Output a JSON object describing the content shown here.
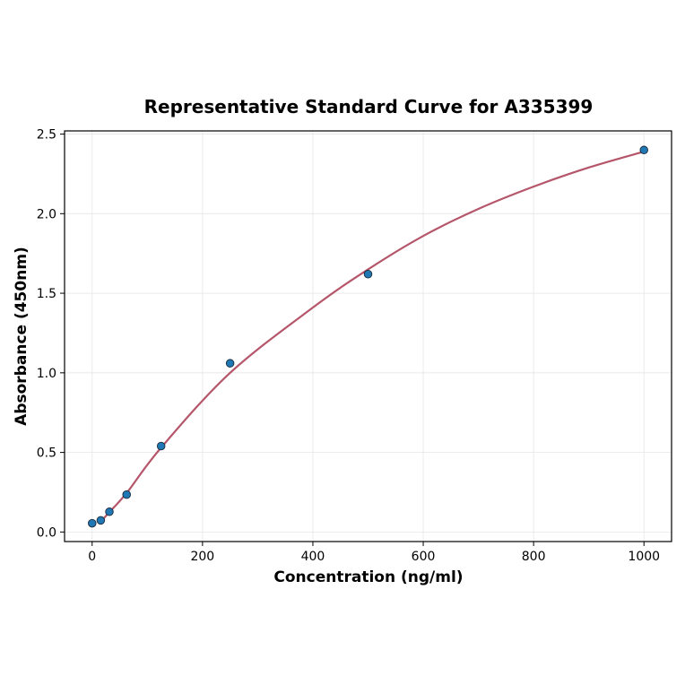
{
  "chart_data": {
    "type": "scatter",
    "title": "Representative Standard Curve for A335399",
    "xlabel": "Concentration (ng/ml)",
    "ylabel": "Absorbance (450nm)",
    "xlim": [
      -50,
      1050
    ],
    "ylim": [
      -0.06,
      2.52
    ],
    "xticks": [
      0,
      200,
      400,
      600,
      800,
      1000
    ],
    "yticks": [
      0.0,
      0.5,
      1.0,
      1.5,
      2.0,
      2.5
    ],
    "grid": true,
    "series": [
      {
        "kind": "points",
        "x": [
          0,
          15.6,
          31.25,
          62.5,
          125,
          250,
          500,
          1000
        ],
        "y": [
          0.055,
          0.073,
          0.127,
          0.235,
          0.54,
          1.06,
          1.62,
          2.4
        ],
        "color": "#1f77b4"
      },
      {
        "kind": "fit-curve",
        "x": [
          15.6,
          31.25,
          62.5,
          125,
          250,
          400,
          500,
          600,
          700,
          800,
          900,
          1000
        ],
        "y": [
          0.065,
          0.125,
          0.245,
          0.53,
          1.0,
          1.41,
          1.65,
          1.86,
          2.03,
          2.17,
          2.29,
          2.39
        ],
        "color": "#b5566a"
      }
    ]
  }
}
